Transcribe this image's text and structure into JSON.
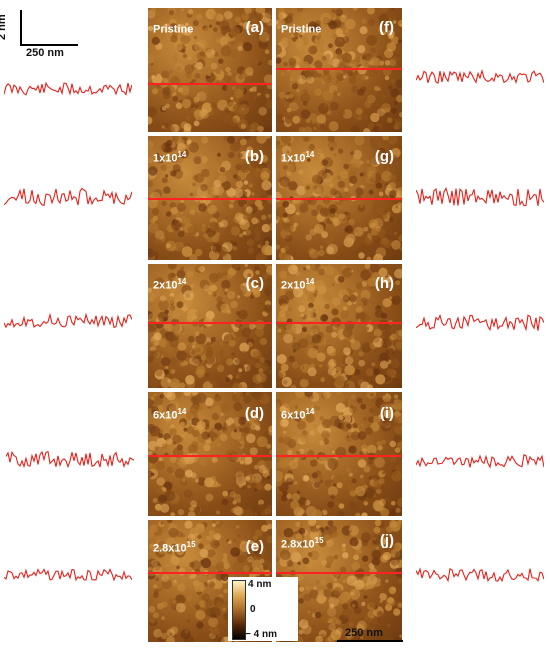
{
  "scale_top": {
    "height_label": "2 nm",
    "length_label": "250 nm"
  },
  "scale_bottom": {
    "length_label": "250 nm"
  },
  "colorbar": {
    "top_label": "4 nm",
    "mid_label": "0",
    "bottom_label": "− 4 nm"
  },
  "panels_left": [
    {
      "letter": "(a)",
      "dose_base": "Pristine",
      "dose_exp": ""
    },
    {
      "letter": "(b)",
      "dose_base": "1x10",
      "dose_exp": "14"
    },
    {
      "letter": "(c)",
      "dose_base": "2x10",
      "dose_exp": "14"
    },
    {
      "letter": "(d)",
      "dose_base": "6x10",
      "dose_exp": "14"
    },
    {
      "letter": "(e)",
      "dose_base": "2.8x10",
      "dose_exp": "15"
    }
  ],
  "panels_right": [
    {
      "letter": "(f)",
      "dose_base": "Pristine",
      "dose_exp": ""
    },
    {
      "letter": "(g)",
      "dose_base": "1x10",
      "dose_exp": "14"
    },
    {
      "letter": "(h)",
      "dose_base": "2x10",
      "dose_exp": "14"
    },
    {
      "letter": "(i)",
      "dose_base": "6x10",
      "dose_exp": "14"
    },
    {
      "letter": "(j)",
      "dose_base": "2.8x10",
      "dose_exp": "15"
    }
  ],
  "colors": {
    "profile_line": "#e8201a",
    "scan_line": "#ff2222",
    "afm_mid": "#a86b28"
  }
}
